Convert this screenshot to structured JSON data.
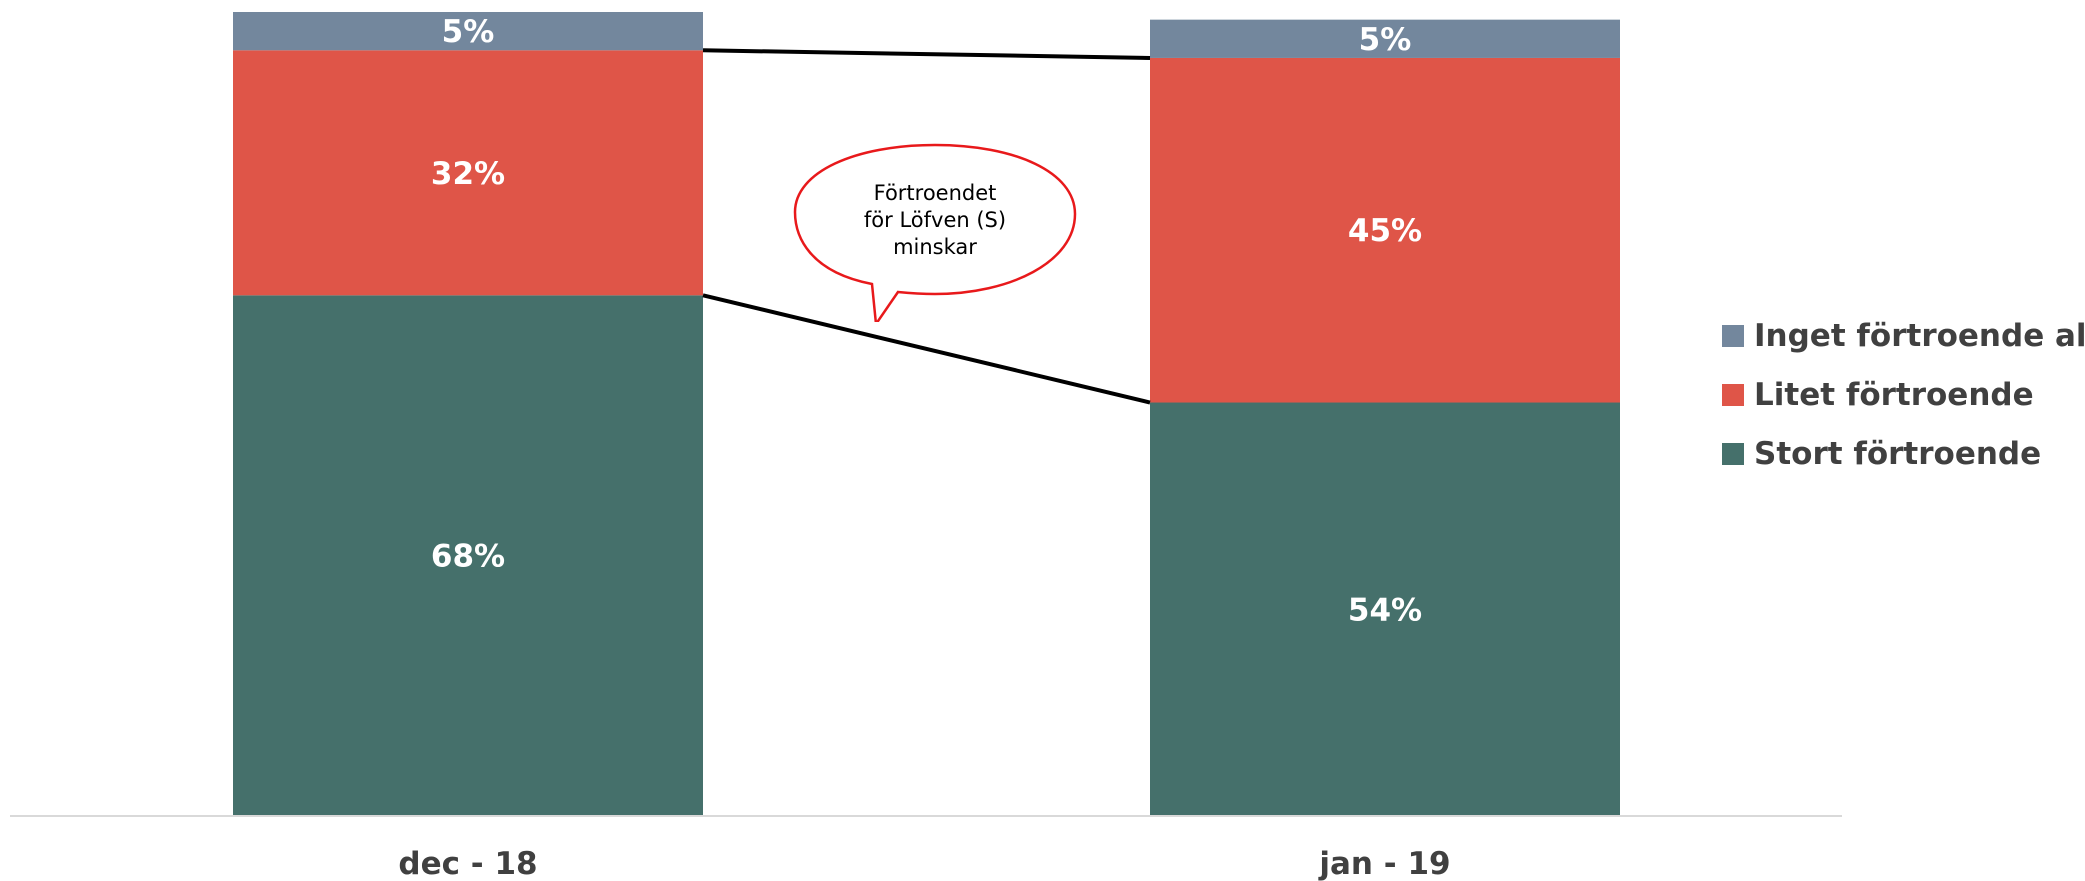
{
  "chart_data": {
    "type": "bar",
    "stacked": true,
    "categories": [
      "dec - 18",
      "jan - 19"
    ],
    "series": [
      {
        "name": "Stort förtroende",
        "values": [
          68,
          54
        ],
        "labels": [
          "68%",
          "54%"
        ],
        "color": "#45706b"
      },
      {
        "name": "Litet förtroende",
        "values": [
          32,
          45
        ],
        "labels": [
          "32%",
          "45%"
        ],
        "color": "#df5548"
      },
      {
        "name": "Inget förtroende alls",
        "values": [
          5,
          5
        ],
        "labels": [
          "5%",
          "5%"
        ],
        "color": "#73879d"
      }
    ],
    "ylim": [
      0,
      105
    ],
    "grid": false,
    "legend_position": "right",
    "title": "",
    "xlabel": "",
    "ylabel": "",
    "annotation": {
      "lines": [
        "Förtroendet",
        "för Löfven (S)",
        "minskar"
      ],
      "border_color": "#e8191b"
    },
    "connector_color": "#000000"
  }
}
